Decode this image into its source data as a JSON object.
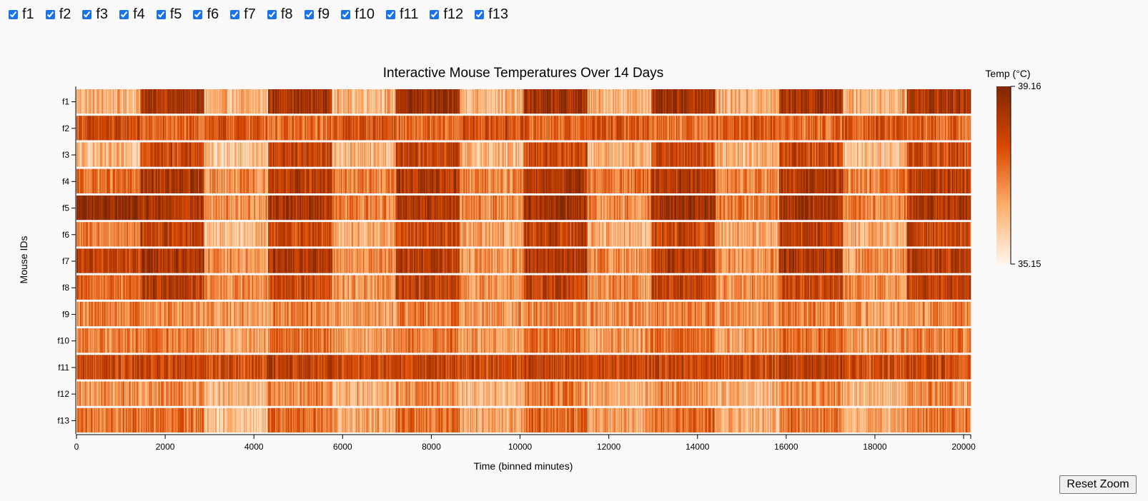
{
  "filters": [
    {
      "label": "f1",
      "checked": true
    },
    {
      "label": "f2",
      "checked": true
    },
    {
      "label": "f3",
      "checked": true
    },
    {
      "label": "f4",
      "checked": true
    },
    {
      "label": "f5",
      "checked": true
    },
    {
      "label": "f6",
      "checked": true
    },
    {
      "label": "f7",
      "checked": true
    },
    {
      "label": "f8",
      "checked": true
    },
    {
      "label": "f9",
      "checked": true
    },
    {
      "label": "f10",
      "checked": true
    },
    {
      "label": "f11",
      "checked": true
    },
    {
      "label": "f12",
      "checked": true
    },
    {
      "label": "f13",
      "checked": true
    }
  ],
  "reset_button_label": "Reset Zoom",
  "chart_data": {
    "type": "heatmap",
    "title": "Interactive Mouse Temperatures Over 14 Days",
    "xlabel": "Time (binned minutes)",
    "ylabel": "Mouse IDs",
    "xlim": [
      0,
      20160
    ],
    "x_ticks": [
      0,
      2000,
      4000,
      6000,
      8000,
      10000,
      12000,
      14000,
      16000,
      18000,
      20000
    ],
    "y_categories": [
      "f1",
      "f2",
      "f3",
      "f4",
      "f5",
      "f6",
      "f7",
      "f8",
      "f9",
      "f10",
      "f11",
      "f12",
      "f13"
    ],
    "color_scale": {
      "title": "Temp (°C)",
      "min": 35.15,
      "max": 39.16,
      "min_color": "#fff5eb",
      "max_color": "#7f2704",
      "scheme": "oranges"
    },
    "period_minutes": 1440,
    "legend_position": "right",
    "series": [
      {
        "name": "f1",
        "values": [
          36.4,
          38.5,
          36.3,
          38.6,
          36.4,
          38.7,
          36.4,
          38.6,
          36.4,
          38.6,
          36.4,
          38.6,
          36.4,
          38.5
        ]
      },
      {
        "name": "f2",
        "values": [
          37.9,
          37.4,
          37.7,
          37.3,
          37.8,
          37.3,
          37.8,
          37.5,
          37.7,
          37.4,
          37.6,
          37.4,
          37.7,
          37.5
        ]
      },
      {
        "name": "f3",
        "values": [
          36.2,
          38.0,
          36.1,
          38.1,
          36.3,
          38.1,
          36.3,
          38.0,
          36.4,
          38.0,
          36.3,
          38.0,
          36.2,
          37.9
        ]
      },
      {
        "name": "f4",
        "values": [
          37.3,
          38.4,
          36.9,
          38.3,
          37.1,
          38.4,
          37.0,
          38.5,
          37.2,
          38.3,
          37.0,
          38.4,
          37.0,
          38.3
        ]
      },
      {
        "name": "f5",
        "values": [
          38.9,
          38.4,
          36.9,
          38.6,
          37.1,
          38.5,
          37.0,
          38.7,
          37.0,
          38.8,
          37.1,
          38.6,
          37.0,
          38.5
        ]
      },
      {
        "name": "f6",
        "values": [
          37.1,
          38.2,
          36.3,
          38.0,
          36.5,
          38.1,
          36.6,
          38.2,
          36.4,
          38.0,
          36.5,
          38.2,
          36.4,
          38.0
        ]
      },
      {
        "name": "f7",
        "values": [
          38.1,
          38.5,
          36.8,
          38.4,
          36.9,
          38.3,
          36.8,
          38.4,
          36.9,
          38.4,
          36.8,
          38.5,
          36.8,
          38.3
        ]
      },
      {
        "name": "f8",
        "values": [
          37.4,
          38.3,
          36.9,
          38.0,
          36.8,
          38.1,
          36.8,
          38.2,
          36.9,
          38.2,
          36.8,
          38.0,
          36.9,
          38.3
        ]
      },
      {
        "name": "f9",
        "values": [
          37.2,
          37.0,
          36.8,
          37.1,
          36.7,
          37.2,
          36.8,
          37.0,
          36.9,
          37.1,
          36.8,
          37.2,
          36.8,
          37.0
        ]
      },
      {
        "name": "f10",
        "values": [
          37.1,
          37.3,
          36.7,
          37.4,
          36.8,
          37.2,
          36.7,
          37.3,
          36.8,
          37.3,
          36.7,
          37.4,
          36.8,
          37.2
        ]
      },
      {
        "name": "f11",
        "values": [
          38.0,
          38.1,
          37.9,
          38.2,
          37.9,
          38.1,
          37.9,
          38.1,
          38.0,
          38.1,
          37.9,
          38.2,
          37.9,
          38.1
        ]
      },
      {
        "name": "f12",
        "values": [
          36.8,
          36.9,
          36.3,
          37.0,
          36.4,
          37.0,
          36.3,
          37.1,
          36.4,
          36.9,
          36.3,
          37.0,
          36.3,
          37.0
        ]
      },
      {
        "name": "f13",
        "values": [
          37.2,
          37.3,
          36.0,
          37.4,
          36.6,
          37.3,
          36.5,
          37.4,
          36.6,
          37.4,
          36.4,
          37.3,
          36.5,
          37.2
        ]
      }
    ]
  }
}
